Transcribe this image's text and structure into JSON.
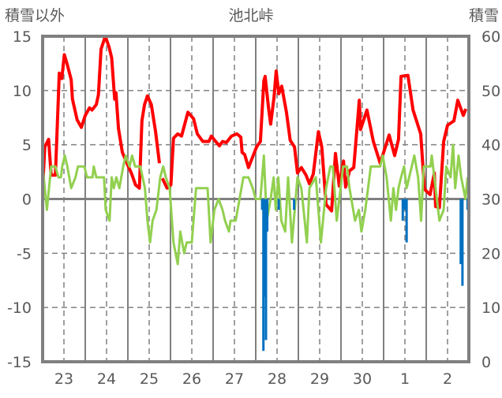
{
  "chart_data": {
    "type": "line",
    "title": "池北峠",
    "ylabel_left": "積雪以外",
    "ylabel_right": "積雪",
    "y_left": {
      "range": [
        -15,
        15
      ],
      "ticks": [
        15,
        10,
        5,
        0,
        -5,
        -10,
        -15
      ],
      "tick_labels": [
        "15",
        "10",
        "5",
        "0",
        "-5",
        "-10",
        "-15"
      ]
    },
    "y_right": {
      "range": [
        0,
        60
      ],
      "ticks": [
        60,
        50,
        40,
        30,
        20,
        10,
        0
      ],
      "tick_labels": [
        "60",
        "50",
        "40",
        "30",
        "20",
        "10",
        "0"
      ]
    },
    "x": {
      "unit": "days from start of 23rd",
      "range": [
        0,
        10
      ],
      "tick_labels": [
        "23",
        "24",
        "25",
        "26",
        "27",
        "28",
        "29",
        "30",
        "1",
        "2"
      ]
    },
    "grid": true,
    "colors": {
      "red": "#ff0000",
      "green": "#92d050",
      "blue": "#0070c0",
      "purple": "#7030a0",
      "frame": "#808080"
    },
    "series": [
      {
        "name": "red",
        "axis": "left",
        "kind": "line",
        "color": "#ff0000",
        "points": [
          [
            0,
            0.9
          ],
          [
            0.05,
            4.8
          ],
          [
            0.14,
            5.5
          ],
          [
            0.2,
            2.2
          ],
          [
            0.3,
            2.2
          ],
          [
            0.39,
            11.6
          ],
          [
            0.45,
            11.1
          ],
          [
            0.51,
            13.3
          ],
          [
            0.57,
            12.5
          ],
          [
            0.67,
            11
          ],
          [
            0.7,
            9.2
          ],
          [
            0.81,
            7.3
          ],
          [
            0.91,
            6.6
          ],
          [
            1.0,
            7.7
          ],
          [
            1.1,
            8.4
          ],
          [
            1.16,
            8.2
          ],
          [
            1.26,
            8.7
          ],
          [
            1.31,
            9.6
          ],
          [
            1.37,
            13.8
          ],
          [
            1.47,
            15
          ],
          [
            1.56,
            14
          ],
          [
            1.62,
            13
          ],
          [
            1.69,
            9.2
          ],
          [
            1.72,
            9.8
          ],
          [
            1.78,
            6.5
          ],
          [
            1.87,
            4.3
          ],
          [
            2.0,
            3.1
          ],
          [
            2.09,
            2.3
          ],
          [
            2.18,
            1.3
          ],
          [
            2.27,
            1.0
          ],
          [
            2.33,
            7.2
          ],
          [
            2.39,
            8.7
          ],
          [
            2.46,
            9.5
          ],
          [
            2.55,
            8.7
          ],
          [
            2.65,
            6.2
          ],
          [
            2.74,
            3.3
          ],
          null,
          [
            2.81,
            1.9
          ],
          [
            2.92,
            1.0
          ],
          [
            3.01,
            1.3
          ],
          [
            3.07,
            5.6
          ],
          [
            3.17,
            6.0
          ],
          [
            3.26,
            5.8
          ],
          [
            3.32,
            6.7
          ],
          [
            3.41,
            8.0
          ],
          [
            3.54,
            7.4
          ],
          [
            3.63,
            6.0
          ],
          [
            3.76,
            5.3
          ],
          [
            3.9,
            5.3
          ],
          [
            3.96,
            5.8
          ],
          [
            4.06,
            5.3
          ],
          [
            4.15,
            4.9
          ],
          [
            4.22,
            5.3
          ],
          [
            4.31,
            5.2
          ],
          [
            4.43,
            5.8
          ],
          [
            4.56,
            6.0
          ],
          [
            4.65,
            5.7
          ],
          [
            4.68,
            4.3
          ],
          [
            4.74,
            4.1
          ],
          [
            4.83,
            2.9
          ],
          [
            4.93,
            3.9
          ],
          [
            5.02,
            4.8
          ],
          [
            5.11,
            5.3
          ],
          [
            5.19,
            10.9
          ],
          [
            5.22,
            11.3
          ],
          [
            5.3,
            8.4
          ],
          [
            5.35,
            6.9
          ],
          [
            5.43,
            9.4
          ],
          [
            5.48,
            11.8
          ],
          [
            5.54,
            9.7
          ],
          [
            5.61,
            10.4
          ],
          [
            5.72,
            8
          ],
          [
            5.81,
            5.4
          ],
          [
            5.91,
            4.8
          ],
          [
            5.98,
            2.4
          ],
          [
            6.07,
            2.9
          ],
          [
            6.18,
            2.2
          ],
          [
            6.26,
            1.4
          ],
          [
            6.35,
            2.3
          ],
          [
            6.47,
            6.2
          ],
          [
            6.55,
            4.8
          ],
          [
            6.65,
            -0.5
          ],
          [
            6.78,
            -1.1
          ],
          [
            6.87,
            4.2
          ],
          [
            6.96,
            1.2
          ],
          [
            7.06,
            3.5
          ],
          [
            7.11,
            1.1
          ],
          [
            7.2,
            2.6
          ],
          [
            7.3,
            2.9
          ],
          [
            7.43,
            9.1
          ],
          [
            7.46,
            6.4
          ],
          [
            7.61,
            8.2
          ],
          [
            7.76,
            5.3
          ],
          [
            7.92,
            3.3
          ],
          [
            8.13,
            5.9
          ],
          [
            8.26,
            4.0
          ],
          [
            8.35,
            5.5
          ],
          [
            8.41,
            11.3
          ],
          [
            8.57,
            11.4
          ],
          [
            8.69,
            8.2
          ],
          [
            8.87,
            6.0
          ],
          [
            8.96,
            0.9
          ],
          [
            9.09,
            0.4
          ],
          [
            9.19,
            2.4
          ],
          [
            9.22,
            -0.7
          ],
          [
            9.31,
            -0.8
          ],
          [
            9.41,
            5.3
          ],
          [
            9.5,
            6.8
          ],
          [
            9.65,
            7.2
          ],
          [
            9.74,
            9.1
          ],
          [
            9.87,
            7.7
          ],
          [
            9.93,
            8.3
          ]
        ]
      },
      {
        "name": "green",
        "axis": "left",
        "kind": "line",
        "color": "#92d050",
        "points": [
          [
            0,
            3
          ],
          [
            0.1,
            -1
          ],
          [
            0.2,
            3
          ],
          [
            0.3,
            3
          ],
          [
            0.37,
            2
          ],
          [
            0.43,
            2
          ],
          [
            0.46,
            3
          ],
          [
            0.52,
            4
          ],
          [
            0.58,
            3
          ],
          [
            0.67,
            1
          ],
          [
            0.77,
            2
          ],
          [
            0.83,
            3
          ],
          [
            0.98,
            3
          ],
          [
            1.04,
            2
          ],
          [
            1.17,
            2
          ],
          [
            1.2,
            3
          ],
          [
            1.26,
            2
          ],
          [
            1.44,
            2
          ],
          [
            1.48,
            -1
          ],
          [
            1.57,
            -2
          ],
          [
            1.62,
            2
          ],
          [
            1.67,
            1
          ],
          [
            1.73,
            2
          ],
          [
            1.8,
            1
          ],
          [
            1.89,
            3
          ],
          [
            1.95,
            4
          ],
          [
            2.04,
            3
          ],
          [
            2.1,
            4
          ],
          [
            2.17,
            3
          ],
          [
            2.29,
            3
          ],
          [
            2.4,
            1
          ],
          [
            2.46,
            -2
          ],
          [
            2.52,
            -4
          ],
          [
            2.58,
            -2
          ],
          [
            2.67,
            -1
          ],
          [
            2.76,
            2
          ],
          [
            2.83,
            3
          ],
          [
            2.89,
            2
          ],
          [
            2.98,
            1
          ],
          [
            3.07,
            -4
          ],
          [
            3.17,
            -6
          ],
          [
            3.23,
            -3
          ],
          [
            3.32,
            -5
          ],
          [
            3.38,
            -4
          ],
          [
            3.5,
            -4
          ],
          [
            3.6,
            1
          ],
          [
            3.87,
            1
          ],
          [
            3.94,
            -4
          ],
          [
            4.03,
            -1
          ],
          [
            4.13,
            0
          ],
          [
            4.22,
            -1
          ],
          [
            4.28,
            -2
          ],
          [
            4.37,
            -3
          ],
          [
            4.41,
            -2
          ],
          [
            4.53,
            -2
          ],
          [
            4.62,
            0
          ],
          [
            4.71,
            2
          ],
          [
            4.83,
            2
          ],
          [
            4.93,
            1
          ],
          [
            5.0,
            0
          ],
          [
            5.11,
            0
          ],
          [
            5.19,
            4
          ],
          [
            5.26,
            -2
          ],
          [
            5.35,
            0
          ],
          [
            5.42,
            2
          ],
          [
            5.47,
            -1
          ],
          [
            5.53,
            2
          ],
          [
            5.6,
            -2
          ],
          [
            5.69,
            -3
          ],
          [
            5.76,
            2
          ],
          [
            5.85,
            -4
          ],
          [
            5.98,
            2
          ],
          [
            6.07,
            1
          ],
          [
            6.2,
            -4
          ],
          [
            6.26,
            1
          ],
          [
            6.41,
            2
          ],
          [
            6.53,
            -4
          ],
          [
            6.65,
            1
          ],
          [
            6.75,
            3
          ],
          [
            6.81,
            3
          ],
          [
            6.9,
            -2
          ],
          [
            6.99,
            1
          ],
          [
            7.05,
            3
          ],
          [
            7.14,
            3
          ],
          [
            7.2,
            1
          ],
          [
            7.33,
            -2
          ],
          [
            7.42,
            -1
          ],
          [
            7.48,
            -3
          ],
          [
            7.57,
            -1
          ],
          [
            7.7,
            3
          ],
          [
            7.92,
            3
          ],
          [
            7.98,
            4
          ],
          [
            8.07,
            2
          ],
          [
            8.17,
            -2
          ],
          [
            8.23,
            1
          ],
          [
            8.29,
            -1
          ],
          [
            8.35,
            1
          ],
          [
            8.41,
            2
          ],
          [
            8.48,
            3
          ],
          [
            8.54,
            1
          ],
          [
            8.6,
            2
          ],
          [
            8.72,
            4
          ],
          [
            8.81,
            2
          ],
          [
            8.88,
            -2
          ],
          [
            8.94,
            3
          ],
          [
            9.1,
            3
          ],
          [
            9.13,
            4
          ],
          [
            9.22,
            1
          ],
          [
            9.31,
            -2
          ],
          [
            9.41,
            -1
          ],
          [
            9.47,
            3
          ],
          [
            9.57,
            2
          ],
          [
            9.63,
            5
          ],
          [
            9.68,
            1
          ],
          [
            9.76,
            4
          ],
          [
            9.82,
            2
          ],
          [
            9.92,
            0
          ],
          [
            9.97,
            2
          ]
        ]
      },
      {
        "name": "blue",
        "axis": "left",
        "kind": "bar",
        "color": "#0070c0",
        "points": [
          [
            5.15,
            -1
          ],
          [
            5.18,
            -14
          ],
          [
            5.21,
            -9
          ],
          [
            5.24,
            -13
          ],
          [
            5.27,
            -3
          ],
          [
            5.54,
            -1
          ],
          [
            5.9,
            -1
          ],
          [
            8.45,
            -2
          ],
          [
            8.49,
            -1
          ],
          [
            8.54,
            -4
          ],
          [
            9.81,
            -6
          ],
          [
            9.85,
            -8
          ],
          [
            9.97,
            -1
          ]
        ]
      },
      {
        "name": "purple",
        "axis": "right",
        "kind": "line",
        "color": "#7030a0",
        "points": [
          [
            0,
            0
          ],
          [
            10,
            0
          ]
        ]
      }
    ]
  }
}
